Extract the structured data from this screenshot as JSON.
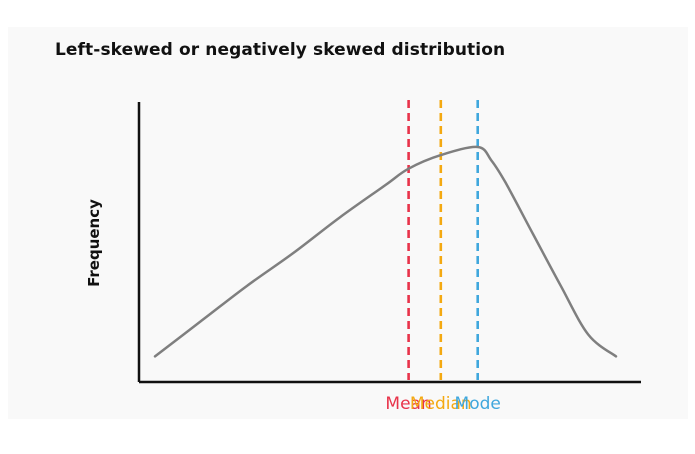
{
  "chart_data": {
    "type": "line",
    "title": "Left-skewed or negatively skewed distribution",
    "ylabel": "Frequency",
    "xlabel": "",
    "xlim": [
      0,
      10
    ],
    "ylim": [
      0,
      10
    ],
    "grid": false,
    "series": [
      {
        "x": [
          0,
          1,
          2,
          3,
          4,
          5,
          5.5,
          6.2,
          7.0,
          7.3,
          7.6,
          8.2,
          8.8,
          9.4,
          10
        ],
        "y": [
          0.5,
          1.8,
          3.1,
          4.3,
          5.6,
          6.8,
          7.4,
          7.9,
          8.2,
          7.7,
          6.9,
          5.0,
          3.1,
          1.3,
          0.5
        ]
      }
    ],
    "markers": [
      {
        "label": "Mean",
        "x": 5.5,
        "color": "#e8334a"
      },
      {
        "label": "Median",
        "x": 6.2,
        "color": "#f4a911"
      },
      {
        "label": "Mode",
        "x": 7.0,
        "color": "#3fa7dd"
      }
    ],
    "curve_color": "#7f7f7f",
    "axis_color": "#111111"
  }
}
